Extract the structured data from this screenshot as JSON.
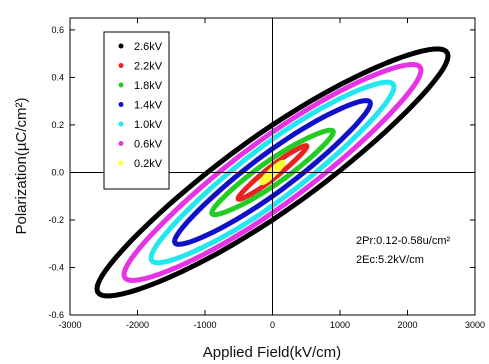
{
  "chart_data": {
    "type": "line",
    "xlabel": "Applied Field(kV/cm)",
    "ylabel": "Polarization(µC/cm²)",
    "xlim": [
      -3000,
      3000
    ],
    "ylim": [
      -0.6,
      0.65
    ],
    "xticks": [
      -3000,
      -2000,
      -1000,
      0,
      1000,
      2000,
      3000
    ],
    "yticks": [
      -0.6,
      -0.4,
      -0.2,
      0.0,
      0.2,
      0.4,
      0.6
    ],
    "xtick_labels": [
      "-3000",
      "-2000",
      "-1000",
      "0",
      "1000",
      "2000",
      "3000"
    ],
    "ytick_labels": [
      "-0.6",
      "-0.4",
      "-0.2",
      "0.0",
      "0.2",
      "0.4",
      "0.6"
    ],
    "grid": false,
    "legend_position": "top-left",
    "annotations": [
      "2Pr:0.12-0.58u/cm²",
      "2Ec:5.2kV/cm"
    ],
    "series": [
      {
        "name": "2.6kV",
        "color": "#000000",
        "emax": 2600,
        "pmax": 0.49,
        "pr": 0.2,
        "ec": -100
      },
      {
        "name": "2.2kV",
        "color": "#e8231f",
        "emax": 510,
        "pmax": 0.11,
        "pr": 0.03,
        "ec": -60
      },
      {
        "name": "1.8kV",
        "color": "#22cc22",
        "emax": 900,
        "pmax": 0.17,
        "pr": 0.06,
        "ec": -150
      },
      {
        "name": "1.4kV",
        "color": "#1010c8",
        "emax": 1450,
        "pmax": 0.29,
        "pr": 0.1,
        "ec": -250
      },
      {
        "name": "1.0kV",
        "color": "#22e6f0",
        "emax": 1800,
        "pmax": 0.36,
        "pr": 0.14,
        "ec": -330
      },
      {
        "name": "0.6kV",
        "color": "#e633e6",
        "emax": 2200,
        "pmax": 0.43,
        "pr": 0.17,
        "ec": -400
      },
      {
        "name": "0.2kV",
        "color": "#ffff33",
        "emax": 150,
        "pmax": 0.04,
        "pr": 0.01,
        "ec": -20
      }
    ]
  }
}
